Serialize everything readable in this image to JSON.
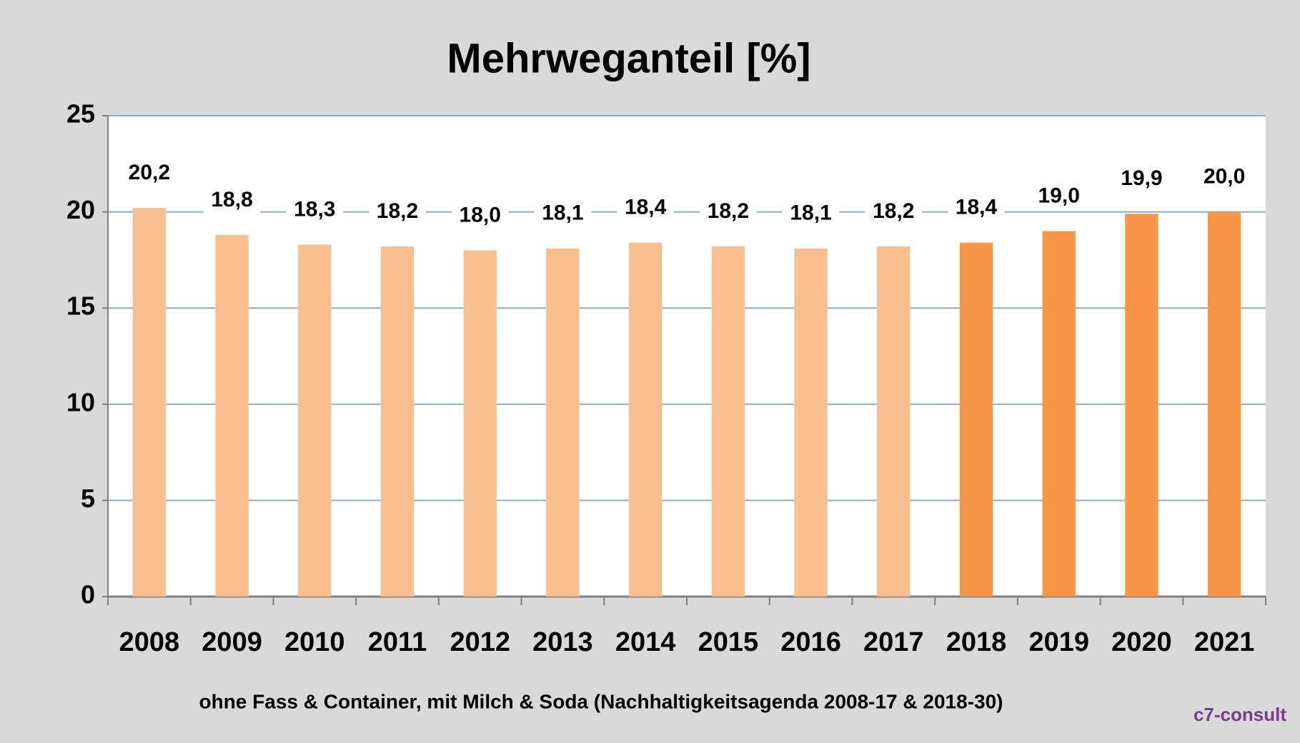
{
  "chart_data": {
    "type": "bar",
    "title": "Mehrweganteil [%]",
    "categories": [
      "2008",
      "2009",
      "2010",
      "2011",
      "2012",
      "2013",
      "2014",
      "2015",
      "2016",
      "2017",
      "2018",
      "2019",
      "2020",
      "2021"
    ],
    "values": [
      20.2,
      18.8,
      18.3,
      18.2,
      18.0,
      18.1,
      18.4,
      18.2,
      18.1,
      18.2,
      18.4,
      19.0,
      19.9,
      20.0
    ],
    "value_labels": [
      "20,2",
      "18,8",
      "18,3",
      "18,2",
      "18,0",
      "18,1",
      "18,4",
      "18,2",
      "18,1",
      "18,2",
      "18,4",
      "19,0",
      "19,9",
      "20,0"
    ],
    "colors": [
      "#f9bf8f",
      "#f9bf8f",
      "#f9bf8f",
      "#f9bf8f",
      "#f9bf8f",
      "#f9bf8f",
      "#f9bf8f",
      "#f9bf8f",
      "#f9bf8f",
      "#f9bf8f",
      "#f79646",
      "#f79646",
      "#f79646",
      "#f79646"
    ],
    "ylim": [
      0,
      25
    ],
    "yticks": [
      0,
      5,
      10,
      15,
      20,
      25
    ],
    "grid": true,
    "note": "ohne Fass & Container, mit Milch & Soda (Nachhaltigkeitsagenda 2008-17 & 2018-30)",
    "logo": "c7-consult"
  }
}
